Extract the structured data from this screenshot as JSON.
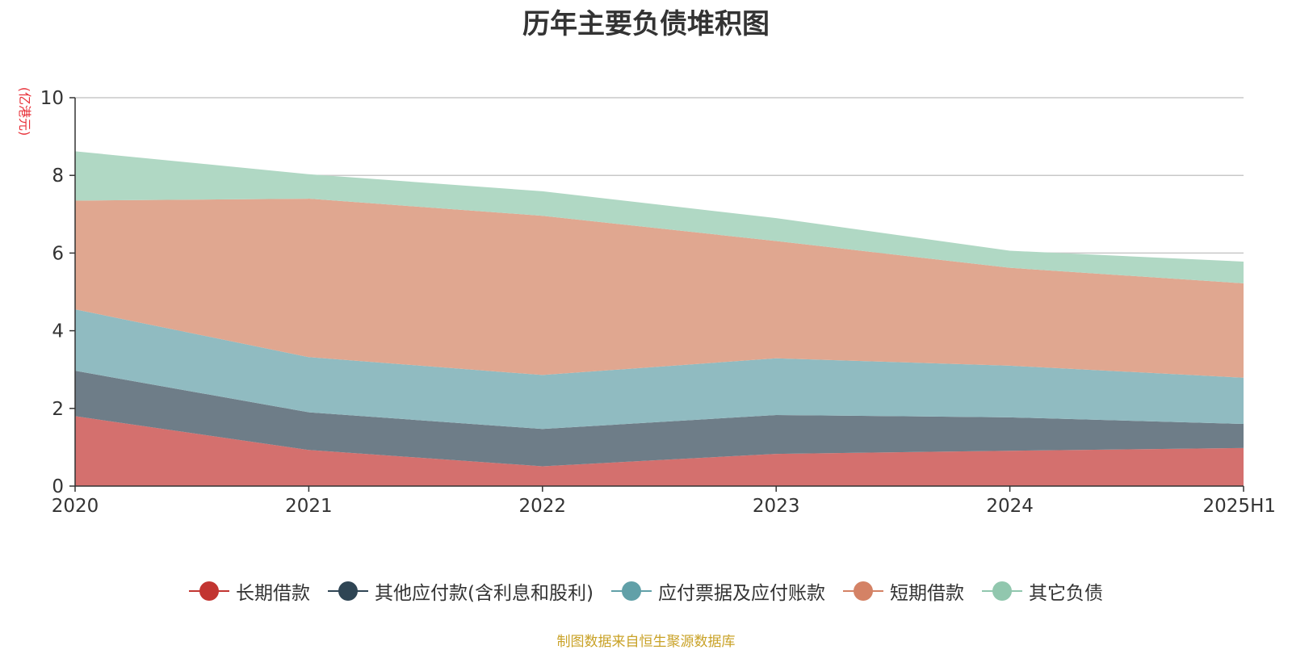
{
  "chart_data": {
    "type": "area",
    "stacked": true,
    "title": "历年主要负债堆积图",
    "ylabel": "(亿港元)",
    "xlabel": "",
    "categories": [
      "2020",
      "2021",
      "2022",
      "2023",
      "2024",
      "2025H1"
    ],
    "ylim": [
      0,
      10
    ],
    "yticks": [
      0,
      2,
      4,
      6,
      8,
      10
    ],
    "grid": true,
    "legend_position": "bottom",
    "series": [
      {
        "name": "长期借款",
        "color": "#c23531",
        "fill": "#d4706e",
        "values": [
          1.8,
          0.93,
          0.51,
          0.83,
          0.91,
          0.98
        ]
      },
      {
        "name": "其他应付款(含利息和股利)",
        "color": "#2f4554",
        "fill": "#6e7d88",
        "values": [
          1.17,
          0.97,
          0.96,
          1.0,
          0.86,
          0.62
        ]
      },
      {
        "name": "应付票据及应付账款",
        "color": "#61a0a8",
        "fill": "#90bbc1",
        "values": [
          1.58,
          1.42,
          1.39,
          1.46,
          1.33,
          1.19
        ]
      },
      {
        "name": "短期借款",
        "color": "#d48265",
        "fill": "#e0a790",
        "values": [
          2.8,
          4.08,
          4.1,
          3.02,
          2.52,
          2.43
        ]
      },
      {
        "name": "其它负债",
        "color": "#91c7ae",
        "fill": "#b0d8c4",
        "values": [
          1.27,
          0.63,
          0.63,
          0.59,
          0.44,
          0.56
        ]
      }
    ]
  },
  "source_note": "制图数据来自恒生聚源数据库"
}
